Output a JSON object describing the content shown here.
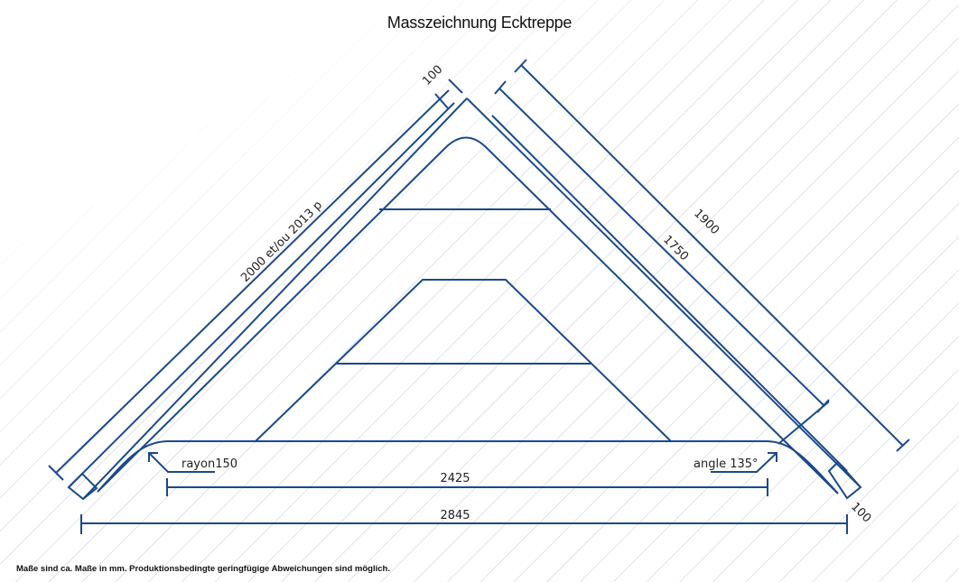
{
  "title": "Masszeichnung Ecktreppe",
  "footnote": "Maße sind ca. Maße in mm. Produktionsbedingte geringfügige Abweichungen sind möglich.",
  "colors": {
    "line": "#1a4a8a",
    "hatch": "#c9d0dc",
    "text": "#222222"
  },
  "dimensions": {
    "left_length": "2000 et/ou 2013 p",
    "top_width": "100",
    "right_outer": "1900",
    "right_inner": "1750",
    "bottom_right_width": "100",
    "inner_width": "2425",
    "total_width": "2845",
    "radius": "rayon150",
    "angle": "angle 135°"
  }
}
